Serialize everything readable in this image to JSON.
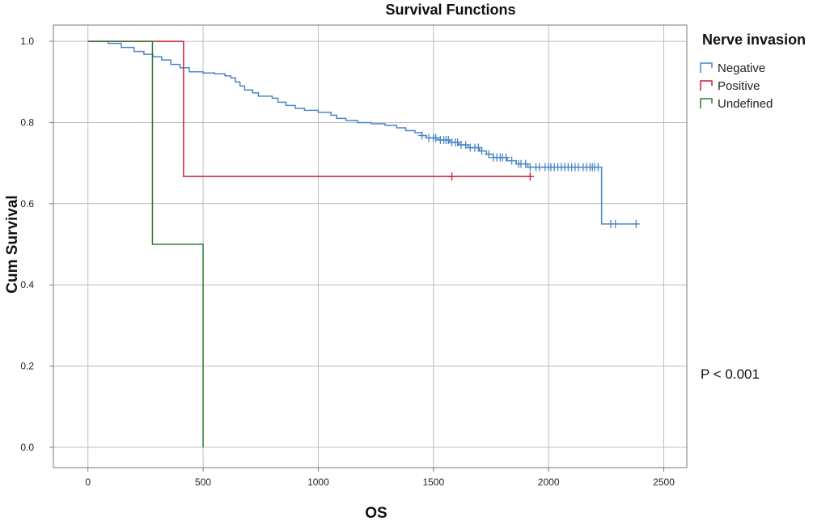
{
  "chart_data": {
    "type": "line",
    "subtype": "kaplan-meier-step",
    "title": "Survival Functions",
    "xlabel": "OS",
    "ylabel": "Cum Survival",
    "xlim": [
      -150,
      2600
    ],
    "ylim": [
      -0.05,
      1.04
    ],
    "xticks": [
      0,
      500,
      1000,
      1500,
      2000,
      2500
    ],
    "yticks": [
      0.0,
      0.2,
      0.4,
      0.6,
      0.8,
      1.0
    ],
    "xtick_labels": [
      "0",
      "500",
      "1000",
      "1500",
      "2000",
      "2500"
    ],
    "ytick_labels": [
      "0.0",
      "0.2",
      "0.4",
      "0.6",
      "0.8",
      "1.0"
    ],
    "grid": true,
    "legend": {
      "title": "Nerve invasion",
      "placement": "right"
    },
    "annotation": "P < 0.001",
    "series": [
      {
        "name": "Negative",
        "color": "#4a86c8",
        "steps": [
          [
            0,
            1.0
          ],
          [
            88,
            0.995
          ],
          [
            145,
            0.985
          ],
          [
            200,
            0.975
          ],
          [
            243,
            0.968
          ],
          [
            282,
            0.962
          ],
          [
            320,
            0.954
          ],
          [
            360,
            0.943
          ],
          [
            400,
            0.935
          ],
          [
            440,
            0.925
          ],
          [
            500,
            0.922
          ],
          [
            550,
            0.92
          ],
          [
            595,
            0.915
          ],
          [
            620,
            0.91
          ],
          [
            640,
            0.9
          ],
          [
            660,
            0.89
          ],
          [
            680,
            0.88
          ],
          [
            715,
            0.873
          ],
          [
            740,
            0.865
          ],
          [
            800,
            0.86
          ],
          [
            825,
            0.85
          ],
          [
            860,
            0.842
          ],
          [
            900,
            0.835
          ],
          [
            940,
            0.83
          ],
          [
            1000,
            0.825
          ],
          [
            1055,
            0.818
          ],
          [
            1080,
            0.81
          ],
          [
            1120,
            0.805
          ],
          [
            1170,
            0.8
          ],
          [
            1230,
            0.797
          ],
          [
            1290,
            0.793
          ],
          [
            1340,
            0.787
          ],
          [
            1380,
            0.78
          ],
          [
            1420,
            0.775
          ],
          [
            1450,
            0.768
          ],
          [
            1470,
            0.762
          ],
          [
            1520,
            0.757
          ],
          [
            1570,
            0.751
          ],
          [
            1610,
            0.745
          ],
          [
            1650,
            0.738
          ],
          [
            1700,
            0.73
          ],
          [
            1730,
            0.722
          ],
          [
            1760,
            0.714
          ],
          [
            1820,
            0.706
          ],
          [
            1860,
            0.698
          ],
          [
            1910,
            0.69
          ],
          [
            2230,
            0.55
          ],
          [
            2390,
            0.55
          ]
        ],
        "censored": [
          1450,
          1480,
          1500,
          1510,
          1530,
          1545,
          1555,
          1565,
          1580,
          1595,
          1605,
          1620,
          1640,
          1660,
          1680,
          1695,
          1710,
          1740,
          1760,
          1775,
          1790,
          1800,
          1815,
          1840,
          1870,
          1880,
          1900,
          1920,
          1945,
          1960,
          1985,
          2000,
          2010,
          2025,
          2040,
          2055,
          2070,
          2085,
          2100,
          2115,
          2130,
          2150,
          2165,
          2180,
          2190,
          2200,
          2215,
          2270,
          2290,
          2380
        ]
      },
      {
        "name": "Positive",
        "color": "#c8203c",
        "steps": [
          [
            0,
            1.0
          ],
          [
            415,
            0.667
          ],
          [
            1920,
            0.667
          ]
        ],
        "censored": [
          1580,
          1920
        ]
      },
      {
        "name": "Undefined",
        "color": "#2e7d32",
        "steps": [
          [
            0,
            1.0
          ],
          [
            280,
            0.5
          ],
          [
            500,
            0.0
          ]
        ],
        "censored": []
      }
    ]
  }
}
